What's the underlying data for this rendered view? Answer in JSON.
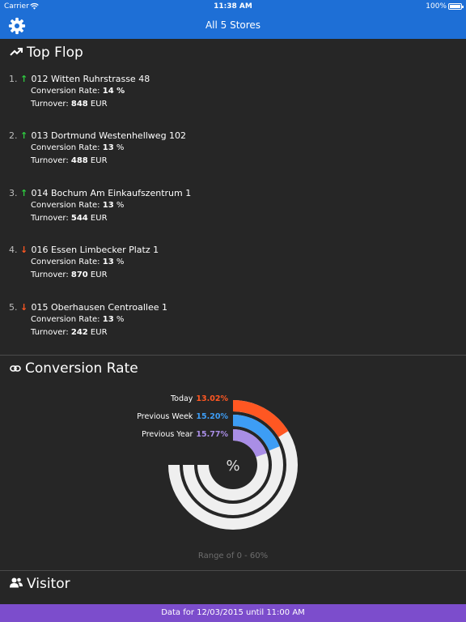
{
  "status": {
    "carrier": "Carrier",
    "time": "11:38 AM",
    "battery": "100%"
  },
  "nav": {
    "title": "All 5 Stores",
    "settings_icon": "gear-icon"
  },
  "top_flop": {
    "title": "Top Flop",
    "icon": "trending-icon",
    "conversion_label": "Conversion Rate: ",
    "turnover_label": "Turnover: ",
    "items": [
      {
        "rank": "1.",
        "trend": "up",
        "arrow": "↑",
        "store": "012 Witten Ruhrstrasse 48",
        "conversion": "14",
        "conversion_unit": " %",
        "turnover": "848",
        "currency": " EUR"
      },
      {
        "rank": "2.",
        "trend": "up",
        "arrow": "↑",
        "store": "013 Dortmund Westenhellweg 102",
        "conversion": "13",
        "conversion_unit": " %",
        "turnover": "488",
        "currency": " EUR"
      },
      {
        "rank": "3.",
        "trend": "up",
        "arrow": "↑",
        "store": "014 Bochum Am Einkaufszentrum 1",
        "conversion": "13",
        "conversion_unit": " %",
        "turnover": "544",
        "currency": " EUR"
      },
      {
        "rank": "4.",
        "trend": "down",
        "arrow": "↓",
        "store": "016 Essen Limbecker Platz 1",
        "conversion": "13",
        "conversion_unit": " %",
        "turnover": "870",
        "currency": " EUR"
      },
      {
        "rank": "5.",
        "trend": "down",
        "arrow": "↓",
        "store": "015 Oberhausen Centroallee 1",
        "conversion": "13",
        "conversion_unit": " %",
        "turnover": "242",
        "currency": " EUR"
      }
    ]
  },
  "conversion": {
    "title": "Conversion Rate",
    "icon": "link-icon",
    "center_symbol": "%",
    "range_text": "Range of 0 - 60%",
    "colors": {
      "track": "#efefef",
      "today": "#ff5722",
      "previous_week": "#3d9df5",
      "previous_year": "#a98ee6"
    },
    "chart_data": {
      "type": "radial-bar",
      "range": [
        0,
        60
      ],
      "series": [
        {
          "name": "Today",
          "label": "13.02%",
          "value": 13.02,
          "color": "#ff5722"
        },
        {
          "name": "Previous Week",
          "label": "15.20%",
          "value": 15.2,
          "color": "#3d9df5"
        },
        {
          "name": "Previous Year",
          "label": "15.77%",
          "value": 15.77,
          "color": "#a98ee6"
        }
      ]
    }
  },
  "visitor": {
    "title": "Visitor",
    "icon": "users-icon"
  },
  "footer": {
    "text": "Data for 12/03/2015 until 11:00 AM"
  }
}
